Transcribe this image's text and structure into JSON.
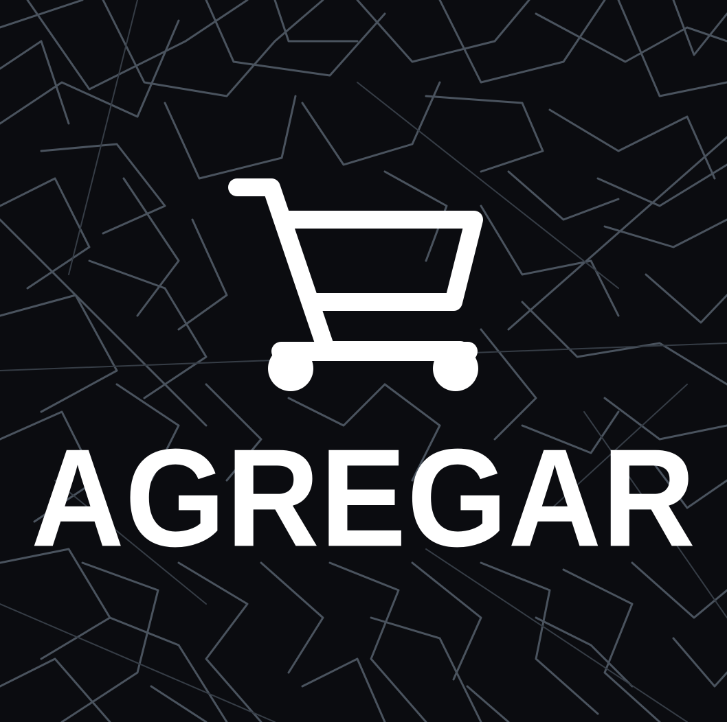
{
  "background": {
    "color": "#0b0c10",
    "line_color": "#4a535e"
  },
  "icon": {
    "name": "shopping-cart-icon",
    "color": "#ffffff"
  },
  "button": {
    "label": "AGREGAR",
    "text_color": "#ffffff"
  }
}
